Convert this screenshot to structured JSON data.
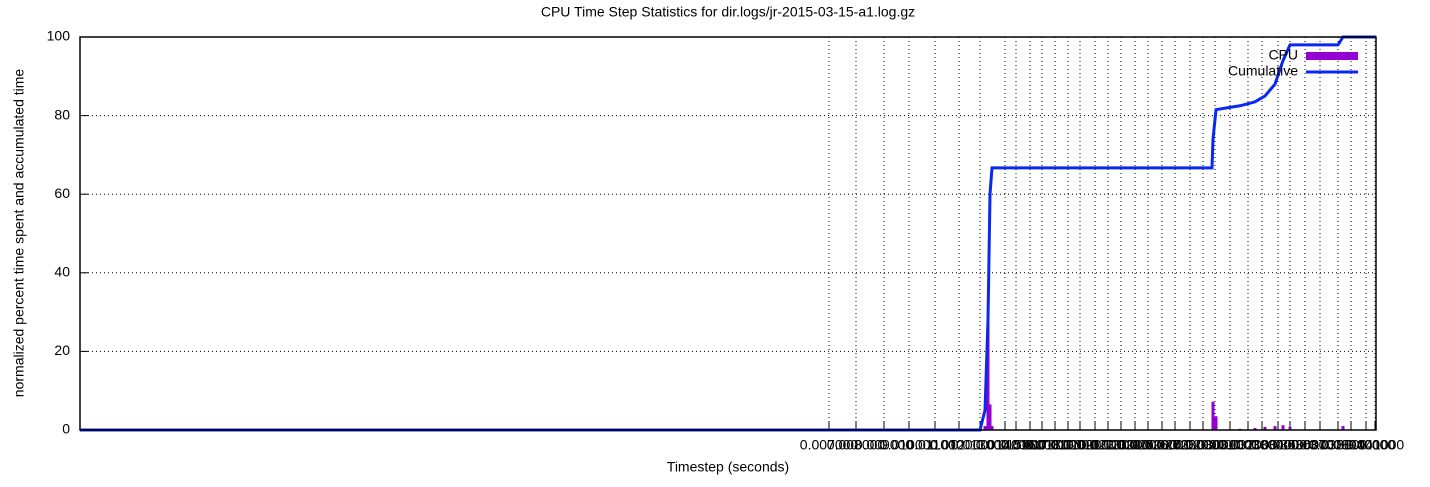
{
  "chart_data": {
    "type": "line",
    "title": "CPU Time Step Statistics for dir.logs/jr-2015-03-15-a1.log.gz",
    "x_label": "Timestep (seconds)",
    "y_label": "normalized percent time spent and accumulated time",
    "xlim": [
      0,
      1296
    ],
    "ylim": [
      0,
      100
    ],
    "yticks": [
      0,
      20,
      40,
      60,
      80,
      100
    ],
    "xticks": [
      {
        "value": 749,
        "label": "0.007000"
      },
      {
        "value": 776,
        "label": "0.008000"
      },
      {
        "value": 804,
        "label": "0.009000"
      },
      {
        "value": 829,
        "label": "0.010000"
      },
      {
        "value": 855,
        "label": "0.011000"
      },
      {
        "value": 879,
        "label": "0.012000"
      },
      {
        "value": 900,
        "label": "0.013000"
      },
      {
        "value": 925,
        "label": "0.014000"
      },
      {
        "value": 936,
        "label": "0.015000"
      },
      {
        "value": 950,
        "label": "0.016000"
      },
      {
        "value": 962,
        "label": "0.017000"
      },
      {
        "value": 975,
        "label": "0.018000"
      },
      {
        "value": 988,
        "label": "0.019000"
      },
      {
        "value": 1000,
        "label": "0.020000"
      },
      {
        "value": 1015,
        "label": "0.021000"
      },
      {
        "value": 1028,
        "label": "0.022000"
      },
      {
        "value": 1041,
        "label": "0.023000"
      },
      {
        "value": 1055,
        "label": "0.024000"
      },
      {
        "value": 1068,
        "label": "0.025000"
      },
      {
        "value": 1082,
        "label": "0.026000"
      },
      {
        "value": 1095,
        "label": "0.027000"
      },
      {
        "value": 1110,
        "label": "0.028000"
      },
      {
        "value": 1123,
        "label": "0.029000"
      },
      {
        "value": 1135,
        "label": "0.030000"
      },
      {
        "value": 1150,
        "label": "0.031000"
      },
      {
        "value": 1168,
        "label": "0.032000"
      },
      {
        "value": 1182,
        "label": "0.033000"
      },
      {
        "value": 1198,
        "label": "0.034000"
      },
      {
        "value": 1210,
        "label": "0.035000"
      },
      {
        "value": 1225,
        "label": "0.036000"
      },
      {
        "value": 1240,
        "label": "0.037000"
      },
      {
        "value": 1258,
        "label": "0.038000"
      },
      {
        "value": 1271,
        "label": "0.039000"
      },
      {
        "value": 1286,
        "label": "0.040000"
      },
      {
        "value": 1295,
        "label": "0.041000"
      }
    ],
    "grid": true,
    "legend": "top-right",
    "x": [
      0,
      900,
      905,
      908,
      910,
      912,
      1132,
      1133,
      1136,
      1160,
      1175,
      1185,
      1195,
      1203,
      1210,
      1258,
      1263,
      1296
    ],
    "series": [
      {
        "name": "CPU",
        "color": "#9400d3",
        "style": "impulses",
        "values": [
          0,
          0,
          1,
          28,
          6.5,
          1,
          0,
          7.2,
          3.5,
          0.3,
          0.5,
          0.8,
          1,
          1.2,
          0.8,
          0,
          1,
          0
        ]
      },
      {
        "name": "Cumulative",
        "color": "#0a28f0",
        "style": "line",
        "values": [
          0,
          0,
          5,
          28,
          60,
          66.7,
          66.7,
          74,
          81.5,
          82.5,
          83.5,
          85,
          88,
          94,
          98,
          98,
          100,
          100
        ]
      }
    ]
  }
}
